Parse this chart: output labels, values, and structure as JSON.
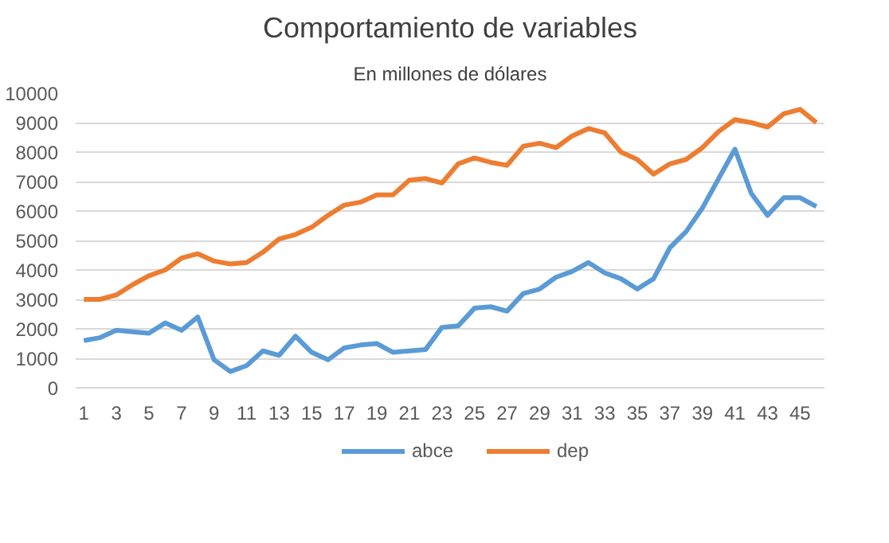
{
  "chart_data": {
    "type": "line",
    "title": "Comportamiento de variables",
    "subtitle": "En millones de dólares",
    "x": [
      1,
      2,
      3,
      4,
      5,
      6,
      7,
      8,
      9,
      10,
      11,
      12,
      13,
      14,
      15,
      16,
      17,
      18,
      19,
      20,
      21,
      22,
      23,
      24,
      25,
      26,
      27,
      28,
      29,
      30,
      31,
      32,
      33,
      34,
      35,
      36,
      37,
      38,
      39,
      40,
      41,
      42,
      43,
      44,
      45,
      46
    ],
    "series": [
      {
        "name": "abce",
        "color": "#5b9bd5",
        "values": [
          1600,
          1700,
          1950,
          1900,
          1850,
          2200,
          1950,
          2400,
          950,
          550,
          750,
          1250,
          1100,
          1750,
          1200,
          950,
          1350,
          1450,
          1500,
          1200,
          1250,
          1300,
          2050,
          2100,
          2700,
          2750,
          2600,
          3200,
          3350,
          3750,
          3950,
          4250,
          3900,
          3700,
          3350,
          3700,
          4750,
          5300,
          6100,
          7100,
          8100,
          6600,
          5850,
          6450,
          6450,
          6150
        ]
      },
      {
        "name": "dep",
        "color": "#ed7d31",
        "values": [
          3000,
          3000,
          3150,
          3500,
          3800,
          4000,
          4400,
          4550,
          4300,
          4200,
          4250,
          4600,
          5050,
          5200,
          5450,
          5850,
          6200,
          6300,
          6550,
          6550,
          7050,
          7100,
          6950,
          7600,
          7800,
          7650,
          7550,
          8200,
          8300,
          8150,
          8550,
          8800,
          8650,
          8000,
          7750,
          7250,
          7600,
          7750,
          8150,
          8700,
          9100,
          9000,
          8850,
          9300,
          9450,
          9000
        ]
      }
    ],
    "xlim": [
      0.5,
      46.5
    ],
    "xticks": [
      1,
      3,
      5,
      7,
      9,
      11,
      13,
      15,
      17,
      19,
      21,
      23,
      25,
      27,
      29,
      31,
      33,
      35,
      37,
      39,
      41,
      43,
      45
    ],
    "ylim": [
      0,
      10000
    ],
    "yticks": [
      0,
      1000,
      2000,
      3000,
      4000,
      5000,
      6000,
      7000,
      8000,
      9000,
      10000
    ],
    "grid": "y",
    "legend": "bottom",
    "marker": "none",
    "line_style": "solid"
  }
}
